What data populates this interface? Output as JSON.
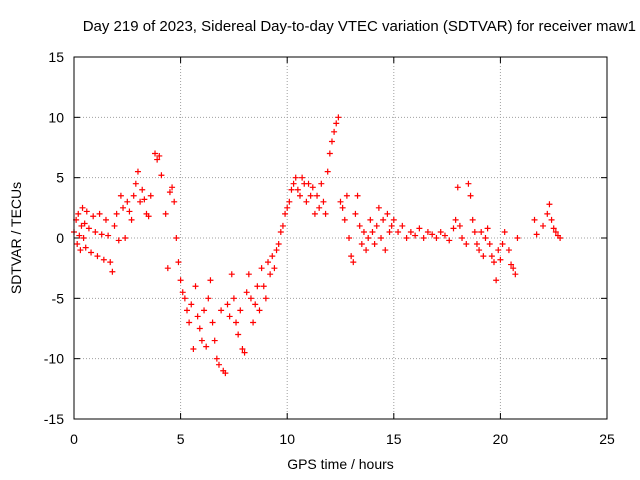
{
  "chart_data": {
    "type": "scatter",
    "title": "Day 219 of 2023, Sidereal Day-to-day VTEC variation (SDTVAR) for receiver maw1",
    "xlabel": "GPS time / hours",
    "ylabel": "SDTVAR / TECUs",
    "xlim": [
      0,
      25
    ],
    "ylim": [
      -15,
      15
    ],
    "xticks": [
      "0",
      "5",
      "10",
      "15",
      "20",
      "25"
    ],
    "yticks": [
      "-15",
      "-10",
      "-5",
      "0",
      "5",
      "10",
      "15"
    ],
    "grid": true,
    "marker": "+",
    "color": "#ff0000",
    "series": [
      {
        "name": "SDTVAR",
        "points": [
          [
            0.0,
            0.5
          ],
          [
            0.1,
            1.5
          ],
          [
            0.15,
            -0.5
          ],
          [
            0.2,
            2.0
          ],
          [
            0.25,
            0.2
          ],
          [
            0.3,
            -1.0
          ],
          [
            0.35,
            1.0
          ],
          [
            0.4,
            2.5
          ],
          [
            0.45,
            0.0
          ],
          [
            0.5,
            1.2
          ],
          [
            0.55,
            -0.8
          ],
          [
            0.6,
            2.2
          ],
          [
            0.7,
            0.8
          ],
          [
            0.8,
            -1.2
          ],
          [
            0.9,
            1.8
          ],
          [
            1.0,
            0.5
          ],
          [
            1.1,
            -1.5
          ],
          [
            1.2,
            2.0
          ],
          [
            1.3,
            0.3
          ],
          [
            1.4,
            -1.8
          ],
          [
            1.5,
            1.5
          ],
          [
            1.6,
            0.2
          ],
          [
            1.7,
            -2.0
          ],
          [
            1.8,
            -2.8
          ],
          [
            1.9,
            1.0
          ],
          [
            2.0,
            2.0
          ],
          [
            2.1,
            -0.2
          ],
          [
            2.2,
            3.5
          ],
          [
            2.3,
            2.5
          ],
          [
            2.4,
            0.0
          ],
          [
            2.5,
            3.0
          ],
          [
            2.6,
            2.2
          ],
          [
            2.7,
            1.5
          ],
          [
            2.8,
            3.5
          ],
          [
            2.9,
            4.5
          ],
          [
            3.0,
            5.5
          ],
          [
            3.1,
            3.0
          ],
          [
            3.2,
            4.0
          ],
          [
            3.3,
            3.2
          ],
          [
            3.4,
            2.0
          ],
          [
            3.5,
            1.8
          ],
          [
            3.6,
            3.5
          ],
          [
            3.8,
            7.0
          ],
          [
            3.9,
            6.5
          ],
          [
            4.0,
            6.8
          ],
          [
            4.1,
            5.2
          ],
          [
            4.3,
            2.0
          ],
          [
            4.4,
            -2.5
          ],
          [
            4.5,
            3.8
          ],
          [
            4.6,
            4.2
          ],
          [
            4.7,
            3.0
          ],
          [
            4.8,
            0.0
          ],
          [
            4.9,
            -2.0
          ],
          [
            5.0,
            -3.5
          ],
          [
            5.1,
            -4.5
          ],
          [
            5.2,
            -5.0
          ],
          [
            5.3,
            -6.0
          ],
          [
            5.4,
            -7.0
          ],
          [
            5.5,
            -5.5
          ],
          [
            5.6,
            -9.2
          ],
          [
            5.7,
            -4.0
          ],
          [
            5.8,
            -6.5
          ],
          [
            5.9,
            -7.5
          ],
          [
            6.0,
            -8.5
          ],
          [
            6.1,
            -6.0
          ],
          [
            6.2,
            -9.0
          ],
          [
            6.3,
            -5.0
          ],
          [
            6.4,
            -3.5
          ],
          [
            6.5,
            -7.0
          ],
          [
            6.6,
            -8.5
          ],
          [
            6.7,
            -10.0
          ],
          [
            6.8,
            -10.5
          ],
          [
            6.9,
            -6.0
          ],
          [
            7.0,
            -11.0
          ],
          [
            7.1,
            -11.2
          ],
          [
            7.2,
            -5.5
          ],
          [
            7.3,
            -6.5
          ],
          [
            7.4,
            -3.0
          ],
          [
            7.5,
            -5.0
          ],
          [
            7.6,
            -7.0
          ],
          [
            7.7,
            -8.0
          ],
          [
            7.8,
            -6.0
          ],
          [
            7.9,
            -9.2
          ],
          [
            8.0,
            -9.5
          ],
          [
            8.1,
            -4.5
          ],
          [
            8.2,
            -3.0
          ],
          [
            8.3,
            -5.0
          ],
          [
            8.4,
            -7.0
          ],
          [
            8.5,
            -5.5
          ],
          [
            8.6,
            -4.0
          ],
          [
            8.7,
            -6.0
          ],
          [
            8.8,
            -2.5
          ],
          [
            8.9,
            -4.0
          ],
          [
            9.0,
            -5.0
          ],
          [
            9.1,
            -2.0
          ],
          [
            9.2,
            -3.0
          ],
          [
            9.3,
            -1.5
          ],
          [
            9.4,
            -2.5
          ],
          [
            9.5,
            -1.0
          ],
          [
            9.6,
            -0.5
          ],
          [
            9.7,
            0.5
          ],
          [
            9.8,
            1.0
          ],
          [
            9.9,
            2.0
          ],
          [
            10.0,
            2.5
          ],
          [
            10.1,
            3.0
          ],
          [
            10.2,
            4.0
          ],
          [
            10.3,
            4.5
          ],
          [
            10.4,
            5.0
          ],
          [
            10.5,
            4.0
          ],
          [
            10.6,
            3.5
          ],
          [
            10.7,
            5.0
          ],
          [
            10.8,
            4.5
          ],
          [
            10.9,
            3.0
          ],
          [
            11.0,
            4.5
          ],
          [
            11.1,
            3.5
          ],
          [
            11.2,
            4.2
          ],
          [
            11.3,
            2.0
          ],
          [
            11.4,
            3.5
          ],
          [
            11.5,
            2.5
          ],
          [
            11.6,
            4.5
          ],
          [
            11.7,
            3.0
          ],
          [
            11.8,
            2.0
          ],
          [
            11.9,
            5.5
          ],
          [
            12.0,
            7.0
          ],
          [
            12.1,
            8.0
          ],
          [
            12.2,
            8.8
          ],
          [
            12.3,
            9.5
          ],
          [
            12.4,
            10.0
          ],
          [
            12.5,
            3.0
          ],
          [
            12.6,
            2.5
          ],
          [
            12.7,
            1.5
          ],
          [
            12.8,
            3.5
          ],
          [
            12.9,
            0.0
          ],
          [
            13.0,
            -1.5
          ],
          [
            13.1,
            -2.0
          ],
          [
            13.2,
            2.0
          ],
          [
            13.3,
            3.5
          ],
          [
            13.4,
            1.0
          ],
          [
            13.5,
            -0.5
          ],
          [
            13.6,
            0.5
          ],
          [
            13.7,
            -1.0
          ],
          [
            13.8,
            0.0
          ],
          [
            13.9,
            1.5
          ],
          [
            14.0,
            0.5
          ],
          [
            14.1,
            -0.5
          ],
          [
            14.2,
            1.0
          ],
          [
            14.3,
            2.5
          ],
          [
            14.4,
            0.0
          ],
          [
            14.5,
            1.5
          ],
          [
            14.6,
            -1.0
          ],
          [
            14.7,
            2.0
          ],
          [
            14.8,
            0.5
          ],
          [
            14.9,
            1.0
          ],
          [
            15.0,
            1.5
          ],
          [
            15.2,
            0.5
          ],
          [
            15.4,
            1.0
          ],
          [
            15.6,
            0.0
          ],
          [
            15.8,
            0.5
          ],
          [
            16.0,
            0.2
          ],
          [
            16.2,
            0.8
          ],
          [
            16.4,
            0.0
          ],
          [
            16.6,
            0.5
          ],
          [
            16.8,
            0.3
          ],
          [
            17.0,
            0.0
          ],
          [
            17.2,
            0.5
          ],
          [
            17.4,
            0.2
          ],
          [
            17.6,
            -0.2
          ],
          [
            17.8,
            0.8
          ],
          [
            17.9,
            1.5
          ],
          [
            18.0,
            4.2
          ],
          [
            18.1,
            1.0
          ],
          [
            18.2,
            0.0
          ],
          [
            18.4,
            -0.5
          ],
          [
            18.5,
            4.5
          ],
          [
            18.6,
            3.5
          ],
          [
            18.7,
            1.5
          ],
          [
            18.8,
            0.5
          ],
          [
            18.9,
            -0.5
          ],
          [
            19.0,
            -1.0
          ],
          [
            19.1,
            0.5
          ],
          [
            19.2,
            -1.5
          ],
          [
            19.3,
            0.0
          ],
          [
            19.4,
            0.8
          ],
          [
            19.5,
            -0.5
          ],
          [
            19.6,
            -1.5
          ],
          [
            19.7,
            -2.0
          ],
          [
            19.8,
            -3.5
          ],
          [
            19.9,
            -1.0
          ],
          [
            20.0,
            -1.8
          ],
          [
            20.1,
            -0.5
          ],
          [
            20.2,
            0.5
          ],
          [
            20.4,
            -1.0
          ],
          [
            20.5,
            -2.2
          ],
          [
            20.6,
            -2.5
          ],
          [
            20.7,
            -3.0
          ],
          [
            20.8,
            0.0
          ],
          [
            21.6,
            1.5
          ],
          [
            21.7,
            0.3
          ],
          [
            22.0,
            1.0
          ],
          [
            22.2,
            2.0
          ],
          [
            22.3,
            2.8
          ],
          [
            22.4,
            1.5
          ],
          [
            22.5,
            0.8
          ],
          [
            22.6,
            0.5
          ],
          [
            22.7,
            0.2
          ],
          [
            22.8,
            0.0
          ]
        ]
      }
    ]
  }
}
